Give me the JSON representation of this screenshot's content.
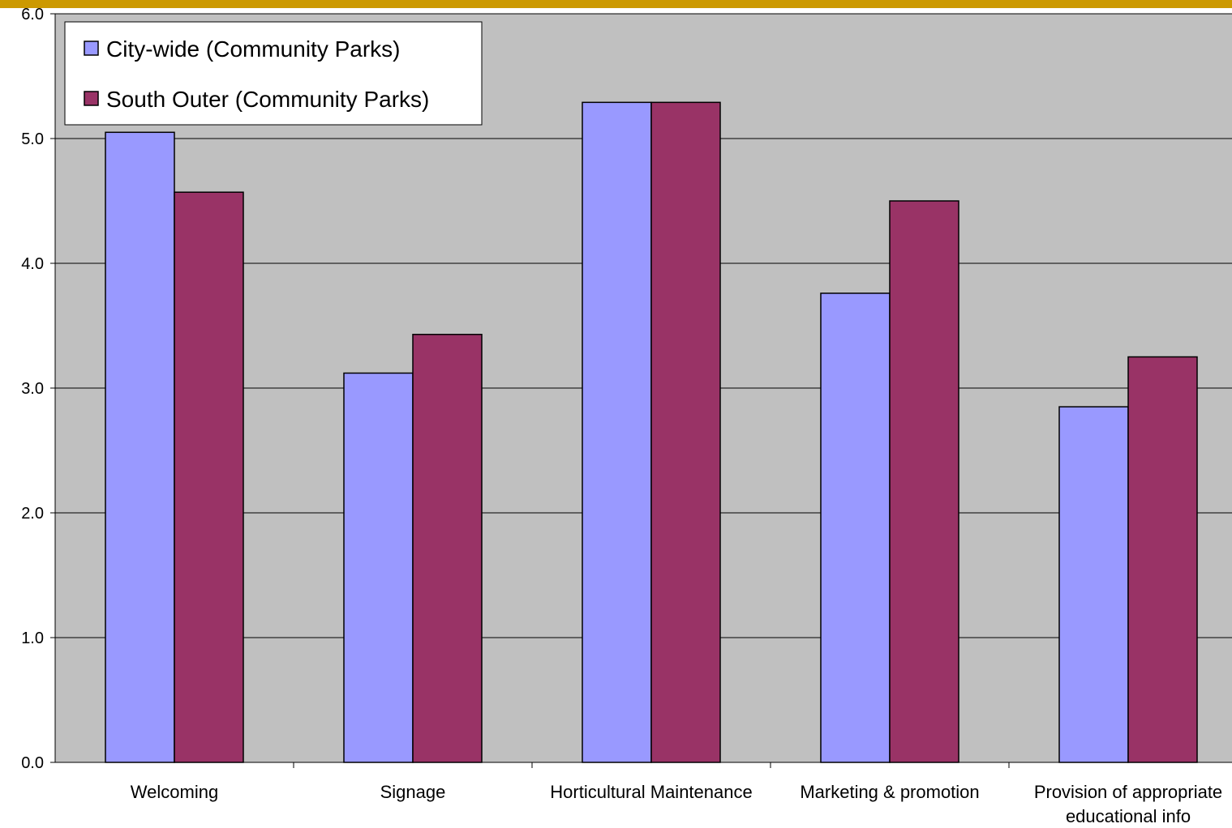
{
  "colors": {
    "top_bar": "#cc9900",
    "plot_background": "#c0c0c0",
    "gridline": "#000000",
    "series_1": "#9999ff",
    "series_2": "#993366"
  },
  "chart_data": {
    "type": "bar",
    "categories": [
      "Welcoming",
      "Signage",
      "Horticultural Maintenance",
      "Marketing & promotion",
      "Provision of appropriate educational info"
    ],
    "category_label_lines": [
      [
        "Welcoming"
      ],
      [
        "Signage"
      ],
      [
        "Horticultural Maintenance"
      ],
      [
        "Marketing & promotion"
      ],
      [
        "Provision of appropriate",
        "educational info"
      ]
    ],
    "series": [
      {
        "name": "City-wide (Community Parks)",
        "values": [
          5.05,
          3.12,
          5.29,
          3.76,
          2.85
        ]
      },
      {
        "name": "South Outer (Community Parks)",
        "values": [
          4.57,
          3.43,
          5.29,
          4.5,
          3.25
        ]
      }
    ],
    "y_ticks": [
      "0.0",
      "1.0",
      "2.0",
      "3.0",
      "4.0",
      "5.0",
      "6.0"
    ],
    "ylim": [
      0,
      6
    ],
    "grid": true,
    "legend_position": "top-left",
    "title": "",
    "xlabel": "",
    "ylabel": ""
  }
}
